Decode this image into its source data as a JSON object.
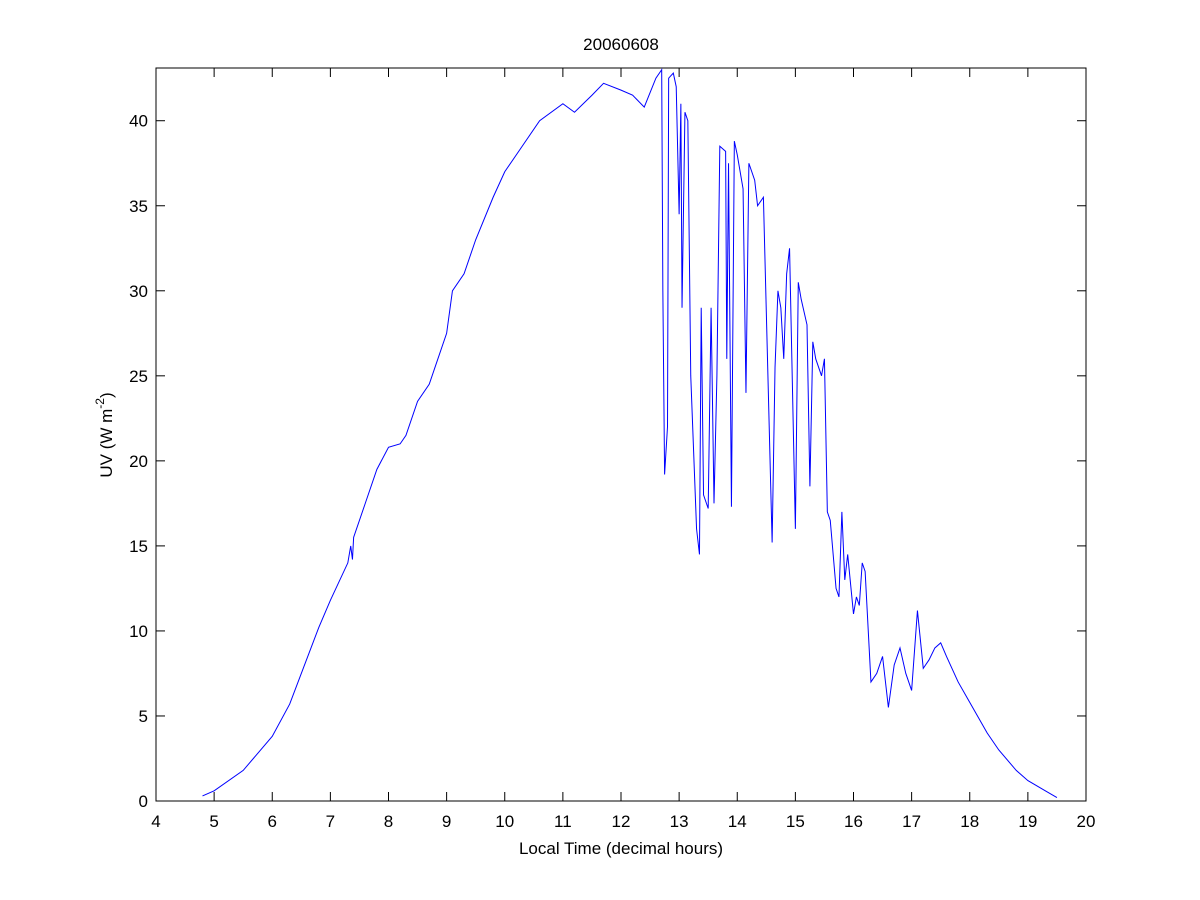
{
  "chart_data": {
    "type": "line",
    "title": "20060608",
    "xlabel": "Local Time (decimal hours)",
    "ylabel": [
      "UV (W m",
      "-2",
      ")"
    ],
    "xlim": [
      4,
      20
    ],
    "ylim": [
      0,
      43.1
    ],
    "xticks": [
      4,
      5,
      6,
      7,
      8,
      9,
      10,
      11,
      12,
      13,
      14,
      15,
      16,
      17,
      18,
      19,
      20
    ],
    "yticks": [
      0,
      5,
      10,
      15,
      20,
      25,
      30,
      35,
      40
    ],
    "grid": false,
    "series": [
      {
        "color": "#0000ff",
        "x": [
          4.8,
          5,
          5.5,
          6,
          6.3,
          6.5,
          6.8,
          7,
          7.3,
          7.35,
          7.38,
          7.4,
          7.6,
          7.8,
          8,
          8.2,
          8.3,
          8.5,
          8.7,
          8.8,
          9,
          9.1,
          9.3,
          9.5,
          9.8,
          10,
          10.3,
          10.6,
          11,
          11.2,
          11.5,
          11.7,
          12,
          12.2,
          12.4,
          12.6,
          12.7,
          12.72,
          12.75,
          12.8,
          12.82,
          12.9,
          12.95,
          13,
          13.03,
          13.05,
          13.1,
          13.15,
          13.2,
          13.3,
          13.35,
          13.38,
          13.42,
          13.5,
          13.55,
          13.6,
          13.65,
          13.7,
          13.8,
          13.82,
          13.85,
          13.9,
          13.95,
          14,
          14.1,
          14.15,
          14.2,
          14.3,
          14.35,
          14.45,
          14.6,
          14.65,
          14.7,
          14.75,
          14.8,
          14.85,
          14.9,
          15,
          15.05,
          15.1,
          15.2,
          15.25,
          15.3,
          15.35,
          15.45,
          15.5,
          15.55,
          15.6,
          15.7,
          15.75,
          15.8,
          15.85,
          15.9,
          16,
          16.05,
          16.1,
          16.15,
          16.2,
          16.3,
          16.4,
          16.5,
          16.6,
          16.7,
          16.8,
          16.9,
          17,
          17.1,
          17.2,
          17.3,
          17.4,
          17.5,
          17.6,
          17.8,
          18,
          18.3,
          18.5,
          18.8,
          19,
          19.3,
          19.5
        ],
        "values": [
          0.3,
          0.6,
          1.8,
          3.8,
          5.7,
          7.5,
          10.2,
          11.8,
          14.0,
          15.0,
          14.2,
          15.5,
          17.5,
          19.5,
          20.8,
          21.0,
          21.5,
          23.5,
          24.5,
          25.5,
          27.5,
          30.0,
          31.0,
          33.0,
          35.5,
          37.0,
          38.5,
          40.0,
          41.0,
          40.5,
          41.5,
          42.2,
          41.8,
          41.5,
          40.8,
          42.5,
          43.0,
          30,
          19.2,
          22,
          42.5,
          42.8,
          42,
          34.5,
          41,
          29,
          40.5,
          40,
          25,
          16,
          14.5,
          29,
          18,
          17.2,
          29,
          17.5,
          25,
          38.5,
          38.2,
          26,
          37.5,
          17.3,
          38.8,
          38,
          36,
          24,
          37.5,
          36.5,
          35,
          35.5,
          15.2,
          25.5,
          30,
          29,
          26,
          31,
          32.5,
          16,
          30.5,
          29.5,
          28,
          18.5,
          27,
          26,
          25,
          26,
          17,
          16.5,
          12.5,
          12,
          17,
          13,
          14.5,
          11,
          12,
          11.5,
          14,
          13.5,
          7,
          7.5,
          8.5,
          5.5,
          8,
          9,
          7.5,
          6.5,
          11.2,
          7.8,
          8.3,
          9,
          9.3,
          8.5,
          7,
          5.8,
          4,
          3,
          1.8,
          1.2,
          0.6,
          0.2
        ]
      }
    ]
  }
}
